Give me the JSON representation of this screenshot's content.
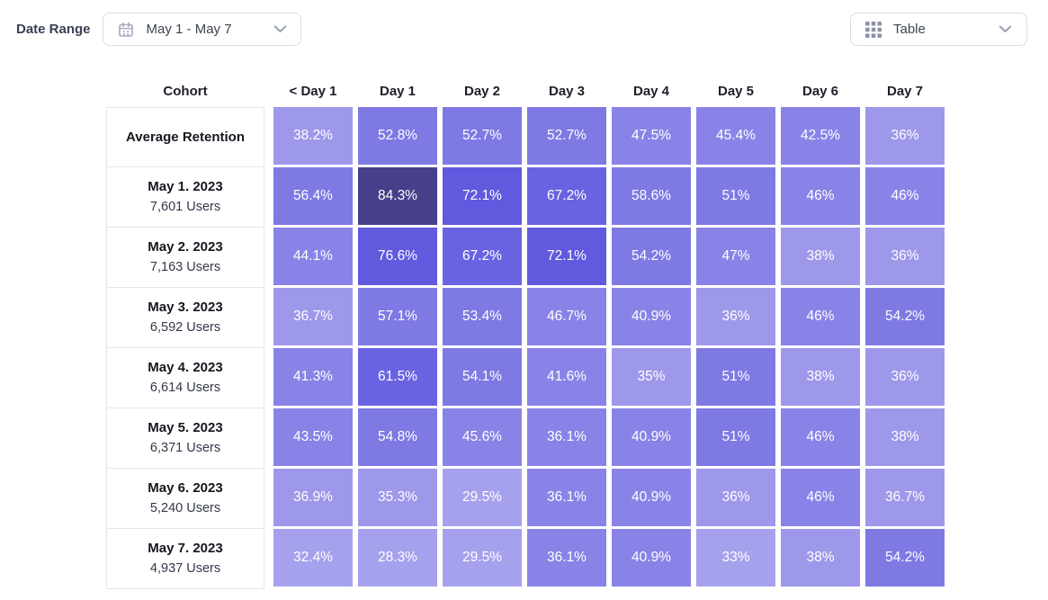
{
  "controls": {
    "date_range_label": "Date Range",
    "date_range_value": "May 1 - May 7",
    "view_selector_value": "Table"
  },
  "icon_colors": {
    "calendar_icon": "#a3a9bc",
    "grid_icon": "#8c93a7",
    "chevron_icon": "#98a0b2"
  },
  "chart_data": {
    "type": "heatmap",
    "columns": [
      "Cohort",
      "< Day 1",
      "Day 1",
      "Day 2",
      "Day 3",
      "Day 4",
      "Day 5",
      "Day 6",
      "Day 7"
    ],
    "palette": [
      "#a6a1ec",
      "#9e98ea",
      "#8983e7",
      "#7f79e4",
      "#6a63e1",
      "#6159de",
      "#454089"
    ],
    "rows": [
      {
        "cohort": "Average Retention",
        "users": "",
        "values": [
          38.2,
          52.8,
          52.7,
          52.7,
          47.5,
          45.4,
          42.5,
          36
        ],
        "texts": [
          "38.2%",
          "52.8%",
          "52.7%",
          "52.7%",
          "47.5%",
          "45.4%",
          "42.5%",
          "36%"
        ],
        "levels": [
          1,
          3,
          3,
          3,
          2,
          2,
          2,
          1
        ]
      },
      {
        "cohort": "May 1. 2023",
        "users": "7,601 Users",
        "values": [
          56.4,
          84.3,
          72.1,
          67.2,
          58.6,
          51,
          46,
          46
        ],
        "texts": [
          "56.4%",
          "84.3%",
          "72.1%",
          "67.2%",
          "58.6%",
          "51%",
          "46%",
          "46%"
        ],
        "levels": [
          3,
          6,
          5,
          4,
          3,
          3,
          2,
          2
        ]
      },
      {
        "cohort": "May 2. 2023",
        "users": "7,163 Users",
        "values": [
          44.1,
          76.6,
          67.2,
          72.1,
          54.2,
          47,
          38,
          36
        ],
        "texts": [
          "44.1%",
          "76.6%",
          "67.2%",
          "72.1%",
          "54.2%",
          "47%",
          "38%",
          "36%"
        ],
        "levels": [
          2,
          5,
          4,
          5,
          3,
          2,
          1,
          1
        ]
      },
      {
        "cohort": "May 3. 2023",
        "users": "6,592 Users",
        "values": [
          36.7,
          57.1,
          53.4,
          46.7,
          40.9,
          36,
          46,
          54.2
        ],
        "texts": [
          "36.7%",
          "57.1%",
          "53.4%",
          "46.7%",
          "40.9%",
          "36%",
          "46%",
          "54.2%"
        ],
        "levels": [
          1,
          3,
          3,
          2,
          2,
          1,
          2,
          3
        ]
      },
      {
        "cohort": "May 4. 2023",
        "users": "6,614 Users",
        "values": [
          41.3,
          61.5,
          54.1,
          41.6,
          35,
          51,
          38,
          36
        ],
        "texts": [
          "41.3%",
          "61.5%",
          "54.1%",
          "41.6%",
          "35%",
          "51%",
          "38%",
          "36%"
        ],
        "levels": [
          2,
          4,
          3,
          2,
          1,
          3,
          1,
          1
        ]
      },
      {
        "cohort": "May 5. 2023",
        "users": "6,371 Users",
        "values": [
          43.5,
          54.8,
          45.6,
          36.1,
          40.9,
          51,
          46,
          38
        ],
        "texts": [
          "43.5%",
          "54.8%",
          "45.6%",
          "36.1%",
          "40.9%",
          "51%",
          "46%",
          "38%"
        ],
        "levels": [
          2,
          3,
          2,
          2,
          2,
          3,
          2,
          1
        ]
      },
      {
        "cohort": "May 6. 2023",
        "users": "5,240 Users",
        "values": [
          36.9,
          35.3,
          29.5,
          36.1,
          40.9,
          36,
          46,
          36.7
        ],
        "texts": [
          "36.9%",
          "35.3%",
          "29.5%",
          "36.1%",
          "40.9%",
          "36%",
          "46%",
          "36.7%"
        ],
        "levels": [
          1,
          1,
          0,
          2,
          2,
          1,
          2,
          1
        ]
      },
      {
        "cohort": "May 7. 2023",
        "users": "4,937 Users",
        "values": [
          32.4,
          28.3,
          29.5,
          36.1,
          40.9,
          33,
          38,
          54.2
        ],
        "texts": [
          "32.4%",
          "28.3%",
          "29.5%",
          "36.1%",
          "40.9%",
          "33%",
          "38%",
          "54.2%"
        ],
        "levels": [
          0,
          0,
          0,
          2,
          2,
          0,
          1,
          3
        ]
      }
    ]
  }
}
